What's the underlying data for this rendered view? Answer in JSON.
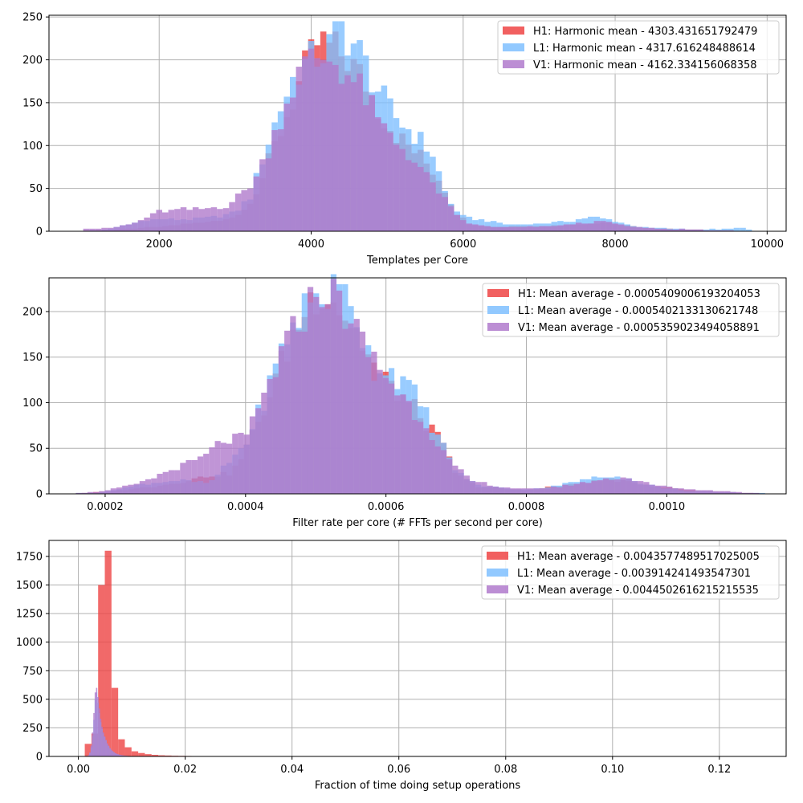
{
  "chart_data": [
    {
      "type": "bar",
      "subtype": "histogram",
      "xlabel": "Templates per Core",
      "ylabel": "",
      "xlim": [
        550,
        10250
      ],
      "ylim": [
        0,
        252
      ],
      "xticks": [
        2000,
        4000,
        6000,
        8000,
        10000
      ],
      "yticks": [
        0,
        50,
        100,
        150,
        200,
        250
      ],
      "grid": true,
      "legend_position": "top-right",
      "bins": {
        "start": 1000,
        "end": 9800,
        "count": 110
      },
      "series": [
        {
          "name": "H1: Harmonic mean  - 4303.431651792479",
          "color": "#ee4444",
          "peaks": [
            [
              1000,
              0
            ],
            [
              1300,
              1
            ],
            [
              1600,
              3
            ],
            [
              2000,
              5
            ],
            [
              2400,
              9
            ],
            [
              2800,
              12
            ],
            [
              3100,
              22
            ],
            [
              3300,
              50
            ],
            [
              3500,
              95
            ],
            [
              3700,
              140
            ],
            [
              3900,
              185
            ],
            [
              4100,
              222
            ],
            [
              4300,
              212
            ],
            [
              4500,
              200
            ],
            [
              4700,
              175
            ],
            [
              4900,
              140
            ],
            [
              5100,
              115
            ],
            [
              5300,
              98
            ],
            [
              5500,
              82
            ],
            [
              5700,
              60
            ],
            [
              5900,
              22
            ],
            [
              6100,
              8
            ],
            [
              6400,
              5
            ],
            [
              6700,
              6
            ],
            [
              7000,
              6
            ],
            [
              7300,
              7
            ],
            [
              7600,
              9
            ],
            [
              7900,
              10
            ],
            [
              8200,
              6
            ],
            [
              8500,
              3
            ],
            [
              8900,
              2
            ],
            [
              9300,
              1
            ],
            [
              9800,
              0
            ]
          ]
        },
        {
          "name": "L1: Harmonic mean  - 4317.616248488614",
          "color": "#7fbfff",
          "peaks": [
            [
              1000,
              0
            ],
            [
              1300,
              2
            ],
            [
              1600,
              8
            ],
            [
              1800,
              13
            ],
            [
              2100,
              14
            ],
            [
              2400,
              14
            ],
            [
              2700,
              16
            ],
            [
              3000,
              22
            ],
            [
              3200,
              40
            ],
            [
              3400,
              95
            ],
            [
              3600,
              145
            ],
            [
              3800,
              185
            ],
            [
              4000,
              200
            ],
            [
              4200,
              210
            ],
            [
              4400,
              237
            ],
            [
              4600,
              215
            ],
            [
              4800,
              180
            ],
            [
              5000,
              145
            ],
            [
              5200,
              125
            ],
            [
              5400,
              110
            ],
            [
              5600,
              90
            ],
            [
              5800,
              35
            ],
            [
              6000,
              17
            ],
            [
              6300,
              12
            ],
            [
              6600,
              8
            ],
            [
              7000,
              9
            ],
            [
              7400,
              12
            ],
            [
              7700,
              17
            ],
            [
              8000,
              12
            ],
            [
              8300,
              5
            ],
            [
              8700,
              3
            ],
            [
              9200,
              2
            ],
            [
              9700,
              4
            ],
            [
              9800,
              0
            ]
          ]
        },
        {
          "name": "V1: Harmonic mean  - 4162.334156068358",
          "color": "#b07acc",
          "peaks": [
            [
              1000,
              3
            ],
            [
              1400,
              4
            ],
            [
              1700,
              10
            ],
            [
              2000,
              23
            ],
            [
              2300,
              25
            ],
            [
              2600,
              26
            ],
            [
              2900,
              30
            ],
            [
              3100,
              45
            ],
            [
              3300,
              65
            ],
            [
              3500,
              110
            ],
            [
              3700,
              158
            ],
            [
              3900,
              192
            ],
            [
              4100,
              205
            ],
            [
              4300,
              200
            ],
            [
              4500,
              180
            ],
            [
              4700,
              160
            ],
            [
              4900,
              125
            ],
            [
              5100,
              105
            ],
            [
              5300,
              90
            ],
            [
              5500,
              65
            ],
            [
              5700,
              45
            ],
            [
              5900,
              18
            ],
            [
              6100,
              8
            ],
            [
              6400,
              5
            ],
            [
              6800,
              5
            ],
            [
              7200,
              6
            ],
            [
              7600,
              10
            ],
            [
              7900,
              11
            ],
            [
              8200,
              5
            ],
            [
              8600,
              3
            ],
            [
              9000,
              2
            ],
            [
              9300,
              1
            ],
            [
              9800,
              0
            ]
          ]
        }
      ]
    },
    {
      "type": "bar",
      "subtype": "histogram",
      "xlabel": "Filter rate per core (# FFTs per second per core)",
      "ylabel": "",
      "xlim": [
        0.00012,
        0.00117
      ],
      "ylim": [
        0,
        237
      ],
      "xticks": [
        0.0002,
        0.0004,
        0.0006,
        0.0008,
        0.001
      ],
      "xtick_labels": [
        "0.0002",
        "0.0004",
        "0.0006",
        "0.0008",
        "0.0010"
      ],
      "yticks": [
        0,
        50,
        100,
        150,
        200
      ],
      "grid": true,
      "legend_position": "top-right",
      "bins": {
        "start": 0.00015,
        "end": 0.00114,
        "count": 120
      },
      "series": [
        {
          "name": "H1: Mean average - 0.0005409006193204053",
          "color": "#ee4444",
          "peaks": [
            [
              0.00015,
              0
            ],
            [
              0.0002,
              2
            ],
            [
              0.00025,
              6
            ],
            [
              0.0003,
              12
            ],
            [
              0.00035,
              20
            ],
            [
              0.00038,
              22
            ],
            [
              0.0004,
              48
            ],
            [
              0.00043,
              100
            ],
            [
              0.00046,
              160
            ],
            [
              0.00049,
              210
            ],
            [
              0.00051,
              228
            ],
            [
              0.00053,
              210
            ],
            [
              0.00056,
              175
            ],
            [
              0.00059,
              130
            ],
            [
              0.00062,
              110
            ],
            [
              0.00065,
              85
            ],
            [
              0.00068,
              55
            ],
            [
              0.0007,
              22
            ],
            [
              0.00073,
              8
            ],
            [
              0.00076,
              6
            ],
            [
              0.0008,
              4
            ],
            [
              0.00084,
              8
            ],
            [
              0.00088,
              12
            ],
            [
              0.00092,
              16
            ],
            [
              0.00095,
              12
            ],
            [
              0.00099,
              8
            ],
            [
              0.00103,
              4
            ],
            [
              0.00108,
              2
            ],
            [
              0.00114,
              0
            ]
          ]
        },
        {
          "name": "L1: Mean average - 0.0005402133130621748",
          "color": "#7fbfff",
          "peaks": [
            [
              0.00015,
              0
            ],
            [
              0.0002,
              2
            ],
            [
              0.00025,
              10
            ],
            [
              0.0003,
              15
            ],
            [
              0.00035,
              12
            ],
            [
              0.0004,
              55
            ],
            [
              0.00043,
              110
            ],
            [
              0.00046,
              175
            ],
            [
              0.00049,
              212
            ],
            [
              0.00052,
              222
            ],
            [
              0.00055,
              218
            ],
            [
              0.00058,
              140
            ],
            [
              0.00061,
              135
            ],
            [
              0.00064,
              110
            ],
            [
              0.00067,
              70
            ],
            [
              0.0007,
              25
            ],
            [
              0.00073,
              10
            ],
            [
              0.00077,
              6
            ],
            [
              0.00081,
              5
            ],
            [
              0.00085,
              10
            ],
            [
              0.0009,
              18
            ],
            [
              0.00093,
              20
            ],
            [
              0.00097,
              10
            ],
            [
              0.00103,
              3
            ],
            [
              0.00108,
              2
            ],
            [
              0.00114,
              1
            ]
          ]
        },
        {
          "name": "V1: Mean average - 0.0005359023494058891",
          "color": "#b07acc",
          "peaks": [
            [
              0.00015,
              0
            ],
            [
              0.0002,
              3
            ],
            [
              0.00025,
              12
            ],
            [
              0.0003,
              28
            ],
            [
              0.00034,
              40
            ],
            [
              0.00037,
              60
            ],
            [
              0.0004,
              60
            ],
            [
              0.00042,
              95
            ],
            [
              0.00045,
              150
            ],
            [
              0.00048,
              195
            ],
            [
              0.00051,
              228
            ],
            [
              0.00054,
              205
            ],
            [
              0.00057,
              160
            ],
            [
              0.0006,
              130
            ],
            [
              0.00063,
              100
            ],
            [
              0.00066,
              75
            ],
            [
              0.00069,
              35
            ],
            [
              0.00072,
              15
            ],
            [
              0.00076,
              8
            ],
            [
              0.0008,
              5
            ],
            [
              0.00085,
              8
            ],
            [
              0.0009,
              15
            ],
            [
              0.00094,
              18
            ],
            [
              0.00098,
              10
            ],
            [
              0.00103,
              5
            ],
            [
              0.00108,
              3
            ],
            [
              0.00114,
              0
            ]
          ]
        }
      ]
    },
    {
      "type": "bar",
      "subtype": "histogram",
      "xlabel": "Fraction of time doing setup operations",
      "ylabel": "",
      "xlim": [
        -0.0055,
        0.1325
      ],
      "ylim": [
        0,
        1890
      ],
      "xticks": [
        0.0,
        0.02,
        0.04,
        0.06,
        0.08,
        0.1,
        0.12
      ],
      "xtick_labels": [
        "0.00",
        "0.02",
        "0.04",
        "0.06",
        "0.08",
        "0.10",
        "0.12"
      ],
      "yticks": [
        0,
        250,
        500,
        750,
        1000,
        1250,
        1500,
        1750
      ],
      "grid": true,
      "legend_position": "top-right",
      "series": [
        {
          "name": "H1: Mean average - 0.004357748951702500 5",
          "color": "#ee4444",
          "bars": {
            "start": 0.0012,
            "width": 0.00125,
            "values": [
              110,
              200,
              1500,
              1800,
              600,
              150,
              80,
              45,
              30,
              20,
              14,
              10,
              8,
              6,
              5,
              4,
              3,
              3,
              2,
              2,
              1,
              1,
              1,
              1,
              1,
              1,
              0,
              0,
              0,
              0,
              0,
              0,
              0,
              0,
              0,
              0,
              0,
              0,
              0,
              0,
              0,
              0,
              0,
              0,
              0,
              0,
              0,
              0,
              0,
              0,
              0,
              0,
              0,
              0,
              0,
              0,
              0,
              0,
              0,
              0,
              0,
              0,
              0,
              0,
              0,
              0,
              0,
              0,
              0,
              0,
              0,
              0,
              0,
              0,
              0,
              0,
              0,
              0,
              0,
              0,
              0,
              0,
              0,
              0,
              0,
              0,
              0,
              0,
              0,
              0,
              0,
              0,
              0,
              0,
              0,
              0,
              0,
              0,
              0,
              0
            ]
          }
        },
        {
          "name": "L1: Mean average - 0.003914241493547301",
          "color": "#7fbfff",
          "bars": {
            "start": 0.0018,
            "width": 0.00025,
            "values": [
              10,
              30,
              80,
              180,
              320,
              500,
              560,
              470,
              380,
              300,
              240,
              200,
              170,
              140,
              110,
              90,
              70,
              55,
              45,
              35,
              28,
              22,
              18,
              14,
              12,
              10,
              8,
              6,
              5,
              4,
              3,
              3,
              2,
              2,
              1,
              1,
              1,
              1,
              1,
              1
            ]
          }
        },
        {
          "name": "V1: Mean average - 0.004450261621521553 5",
          "color": "#b07acc",
          "bars": {
            "start": 0.0018,
            "width": 0.00025,
            "values": [
              12,
              35,
              95,
              210,
              380,
              560,
              600,
              520,
              420,
              330,
              260,
              210,
              175,
              145,
              115,
              95,
              75,
              60,
              48,
              38,
              30,
              24,
              20,
              16,
              13,
              11,
              9,
              7,
              6,
              5,
              4,
              3,
              3,
              2,
              2,
              1,
              1,
              1,
              1,
              1
            ]
          }
        }
      ],
      "legend_labels": [
        "H1: Mean average - 0.004357748951702500 5",
        "L1: Mean average - 0.003914241493547301",
        "V1: Mean average - 0.004450261621521553 5"
      ]
    }
  ],
  "legends": [
    [
      "H1: Harmonic mean  - 4303.431651792479",
      "L1: Harmonic mean  - 4317.616248488614",
      "V1: Harmonic mean  - 4162.334156068358"
    ],
    [
      "H1: Mean average - 0.0005409006193204053",
      "L1: Mean average - 0.0005402133130621748",
      "V1: Mean average - 0.0005359023494058891"
    ],
    [
      "H1: Mean average - 0.004357748951702500 5",
      "L1: Mean average - 0.003914241493547301",
      "V1: Mean average - 0.004450261621521553 5"
    ]
  ],
  "colors": {
    "H1": "#ee4444",
    "L1": "#7fbfff",
    "V1": "#b07acc"
  }
}
